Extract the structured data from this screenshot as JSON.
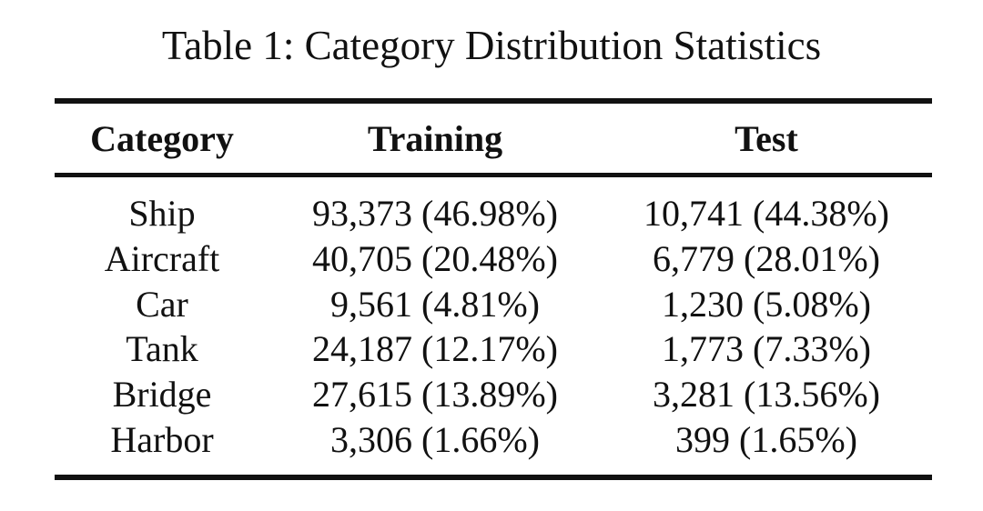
{
  "caption": "Table 1: Category Distribution Statistics",
  "table": {
    "headers": [
      "Category",
      "Training",
      "Test"
    ],
    "rows": [
      [
        "Ship",
        "93,373 (46.98%)",
        "10,741 (44.38%)"
      ],
      [
        "Aircraft",
        "40,705 (20.48%)",
        "6,779 (28.01%)"
      ],
      [
        "Car",
        "9,561 (4.81%)",
        "1,230 (5.08%)"
      ],
      [
        "Tank",
        "24,187 (12.17%)",
        "1,773 (7.33%)"
      ],
      [
        "Bridge",
        "27,615 (13.89%)",
        "3,281 (13.56%)"
      ],
      [
        "Harbor",
        "3,306 (1.66%)",
        "399 (1.65%)"
      ]
    ]
  }
}
